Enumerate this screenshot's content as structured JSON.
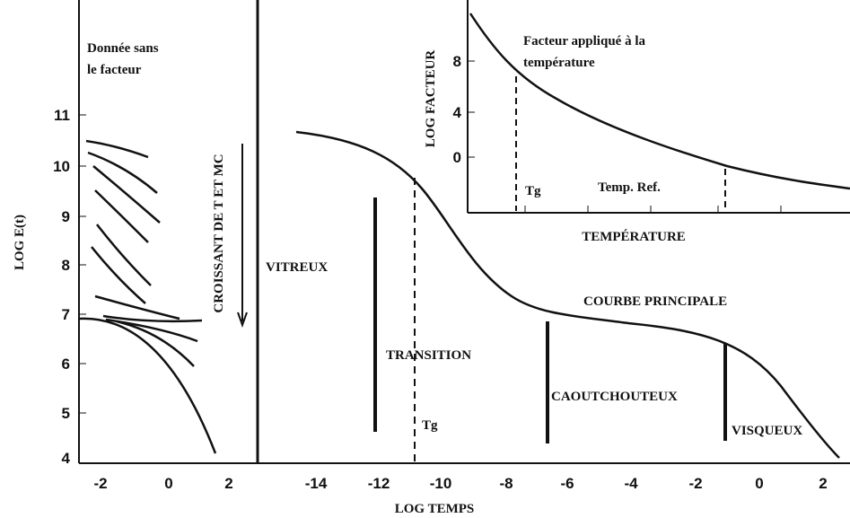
{
  "left_panel": {
    "title_lines": [
      "Donnée sans",
      "le facteur"
    ],
    "xticks": [
      "-2",
      "0",
      "2"
    ]
  },
  "y_axis": {
    "label": "LOG E(t)",
    "ticks": [
      "11",
      "10",
      "9",
      "8",
      "7",
      "6",
      "5",
      "4"
    ]
  },
  "main": {
    "xticks": [
      "-14",
      "-12",
      "-10",
      "-8",
      "-6",
      "-4",
      "-2",
      "0",
      "2"
    ],
    "x_label": "LOG TEMPS",
    "arrow_label": "CROISSANT DE T ET MC",
    "curve_label": "COURBE PRINCIPALE",
    "tg_label": "Tg",
    "regions": [
      "VITREUX",
      "TRANSITION",
      "CAOUTCHOUTEUX",
      "VISQUEUX"
    ]
  },
  "inset": {
    "title_lines": [
      "Facteur appliqué à la",
      "température"
    ],
    "y_label": "LOG FACTEUR",
    "yticks": [
      "8",
      "4",
      "0"
    ],
    "x_label": "TEMPÉRATURE",
    "tg_label": "Tg",
    "ref_label": "Temp. Ref."
  }
}
